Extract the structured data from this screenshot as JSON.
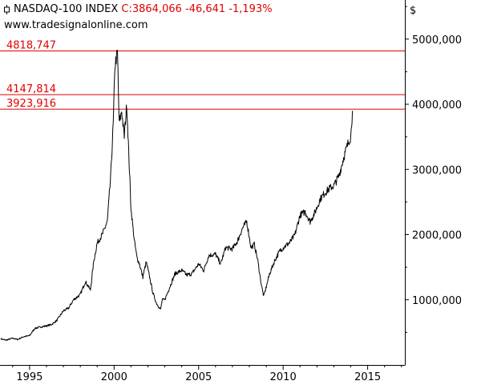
{
  "header": {
    "title": "NASDAQ-100 INDEX",
    "quote": "C:3864,066 -46,641 -1,193%",
    "website": "www.tradesignalonline.com",
    "currency": "$"
  },
  "colors": {
    "line": "#000000",
    "level_lines": "#e00000",
    "quote_text": "#e00000",
    "axis": "#000000"
  },
  "chart_data": {
    "type": "line",
    "title": "NASDAQ-100 INDEX",
    "xlabel": "",
    "ylabel": "$",
    "xlim": [
      1993.25,
      2017.2
    ],
    "ylim": [
      0,
      5600
    ],
    "x_ticks": [
      1995,
      2000,
      2005,
      2010,
      2015
    ],
    "x_tick_labels": [
      "1995",
      "2000",
      "2005",
      "2010",
      "2015"
    ],
    "y_ticks": [
      1000,
      2000,
      3000,
      4000,
      5000
    ],
    "y_tick_labels": [
      "1000,000",
      "2000,000",
      "3000,000",
      "4000,000",
      "5000,000"
    ],
    "horizontal_levels": [
      {
        "value": 4818.747,
        "label": "4818,747"
      },
      {
        "value": 4147.814,
        "label": "4147,814"
      },
      {
        "value": 3923.916,
        "label": "3923,916"
      }
    ],
    "series": [
      {
        "x": [
          1993.3,
          1993.6,
          1994.0,
          1994.3,
          1994.6,
          1995.0,
          1995.3,
          1995.6,
          1996.0,
          1996.3,
          1996.6,
          1997.0,
          1997.3,
          1997.6,
          1998.0,
          1998.3,
          1998.6,
          1998.8,
          1999.0,
          1999.3,
          1999.6,
          1999.8,
          1999.95,
          2000.05,
          2000.2,
          2000.3,
          2000.45,
          2000.6,
          2000.75,
          2001.0,
          2001.2,
          2001.35,
          2001.5,
          2001.7,
          2001.9,
          2002.1,
          2002.3,
          2002.5,
          2002.75,
          2002.85,
          2003.0,
          2003.3,
          2003.6,
          2004.0,
          2004.3,
          2004.6,
          2005.0,
          2005.3,
          2005.6,
          2006.0,
          2006.3,
          2006.6,
          2007.0,
          2007.3,
          2007.6,
          2007.85,
          2008.1,
          2008.3,
          2008.5,
          2008.7,
          2008.85,
          2009.0,
          2009.2,
          2009.5,
          2009.8,
          2010.1,
          2010.4,
          2010.7,
          2011.0,
          2011.3,
          2011.6,
          2011.9,
          2012.2,
          2012.5,
          2012.8,
          2013.0,
          2013.3,
          2013.6,
          2013.9,
          2014.0,
          2014.1
        ],
        "values": [
          400,
          380,
          410,
          390,
          430,
          450,
          560,
          580,
          600,
          620,
          680,
          830,
          870,
          1000,
          1080,
          1280,
          1150,
          1600,
          1870,
          2000,
          2200,
          2900,
          3700,
          4600,
          4800,
          3700,
          3900,
          3500,
          4000,
          2400,
          1900,
          1650,
          1550,
          1350,
          1580,
          1350,
          1100,
          950,
          850,
          1000,
          1000,
          1200,
          1400,
          1450,
          1380,
          1400,
          1550,
          1450,
          1680,
          1700,
          1550,
          1800,
          1780,
          1900,
          2100,
          2200,
          1800,
          1850,
          1600,
          1250,
          1050,
          1200,
          1400,
          1600,
          1750,
          1820,
          1880,
          2000,
          2300,
          2350,
          2200,
          2350,
          2550,
          2650,
          2720,
          2750,
          2900,
          3200,
          3450,
          3500,
          3900
        ]
      }
    ]
  }
}
